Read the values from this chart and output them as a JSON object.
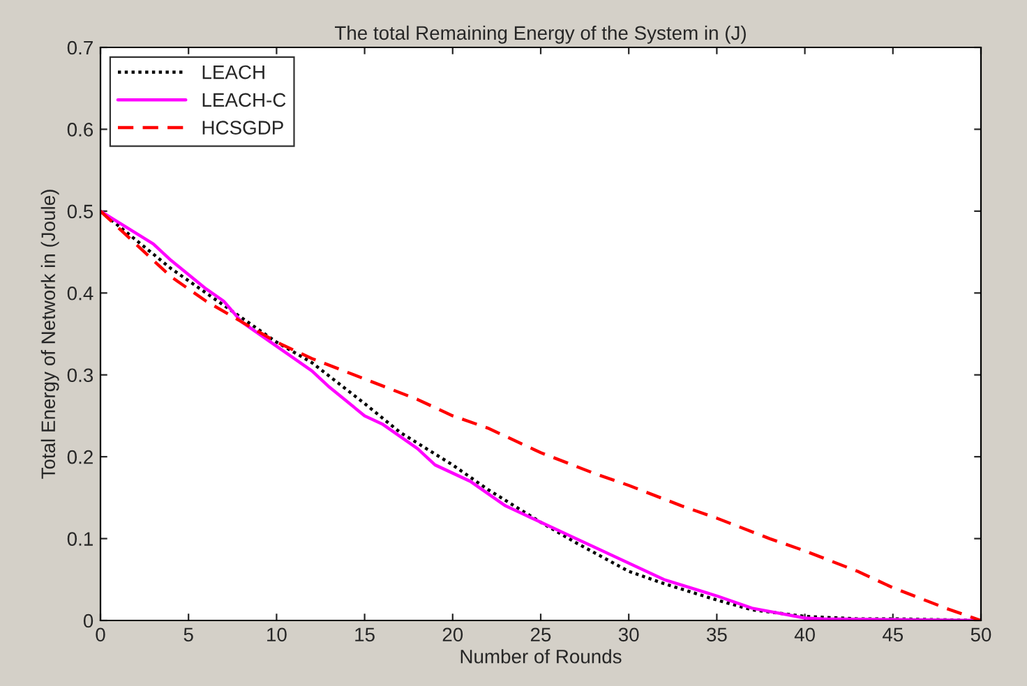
{
  "chart_data": {
    "type": "line",
    "title": "The total Remaining Energy of the System in (J)",
    "xlabel": "Number of Rounds",
    "ylabel": "Total Energy of Network in (Joule)",
    "xlim": [
      0,
      50
    ],
    "xticks": [
      0,
      5,
      10,
      15,
      20,
      25,
      30,
      35,
      40,
      45,
      50
    ],
    "ylim": [
      0,
      0.7
    ],
    "yticks": [
      0,
      0.1,
      0.2,
      0.3,
      0.4,
      0.5,
      0.6,
      0.7
    ],
    "grid": false,
    "legend": "top left",
    "series": [
      {
        "name": "LEACH",
        "color": "#000000",
        "line_style": "dotted",
        "x": [
          0,
          2,
          4,
          5,
          7,
          10,
          12,
          15,
          17,
          20,
          22,
          25,
          27,
          30,
          32,
          35,
          37,
          40,
          43,
          45,
          50
        ],
        "values": [
          0.5,
          0.465,
          0.43,
          0.415,
          0.385,
          0.34,
          0.315,
          0.265,
          0.23,
          0.19,
          0.16,
          0.12,
          0.095,
          0.06,
          0.045,
          0.025,
          0.013,
          0.005,
          0.002,
          0.002,
          0
        ]
      },
      {
        "name": "LEACH-C",
        "color": "#ff00ff",
        "line_style": "solid",
        "x": [
          0,
          3,
          4,
          6,
          7,
          8,
          10,
          12,
          13,
          15,
          16,
          18,
          19,
          21,
          23,
          24,
          26,
          28,
          30,
          32,
          35,
          37,
          40,
          41,
          45,
          50
        ],
        "values": [
          0.5,
          0.46,
          0.44,
          0.405,
          0.39,
          0.365,
          0.335,
          0.305,
          0.285,
          0.25,
          0.24,
          0.21,
          0.19,
          0.17,
          0.14,
          0.13,
          0.11,
          0.09,
          0.07,
          0.05,
          0.03,
          0.015,
          0.003,
          0.002,
          0.001,
          0
        ]
      },
      {
        "name": "HCSGDP",
        "color": "#ff0000",
        "line_style": "dashed",
        "x": [
          0,
          2,
          4,
          6,
          8,
          10,
          12,
          15,
          18,
          20,
          22,
          25,
          28,
          30,
          33,
          35,
          38,
          40,
          43,
          45,
          48,
          50
        ],
        "values": [
          0.5,
          0.46,
          0.42,
          0.39,
          0.365,
          0.34,
          0.32,
          0.295,
          0.27,
          0.25,
          0.235,
          0.205,
          0.18,
          0.165,
          0.14,
          0.125,
          0.1,
          0.085,
          0.06,
          0.04,
          0.015,
          0
        ]
      }
    ]
  }
}
